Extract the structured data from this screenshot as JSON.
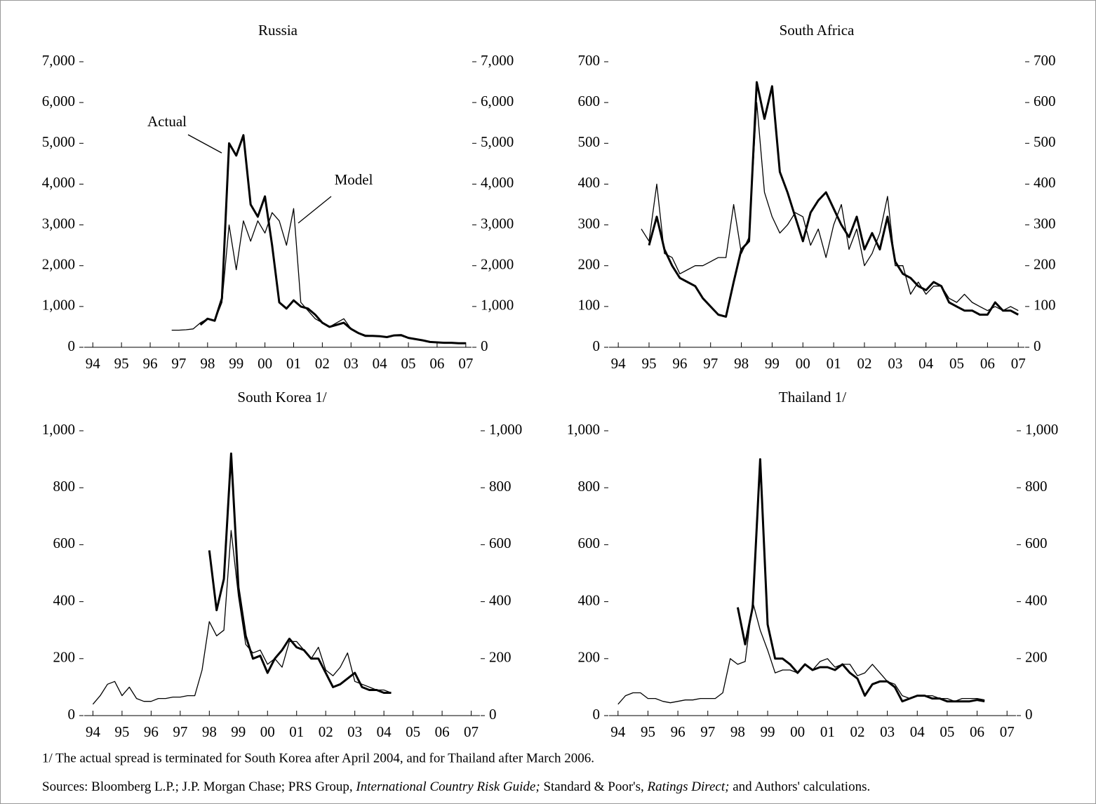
{
  "chart_data": [
    {
      "type": "line",
      "title": "Russia",
      "x": [
        1994,
        1994.25,
        1994.5,
        1994.75,
        1995,
        1995.25,
        1995.5,
        1995.75,
        1996,
        1996.25,
        1996.5,
        1996.75,
        1997,
        1997.25,
        1997.5,
        1997.75,
        1998,
        1998.25,
        1998.5,
        1998.75,
        1999,
        1999.25,
        1999.5,
        1999.75,
        2000,
        2000.25,
        2000.5,
        2000.75,
        2001,
        2001.25,
        2001.5,
        2001.75,
        2002,
        2002.25,
        2002.5,
        2002.75,
        2003,
        2003.25,
        2003.5,
        2003.75,
        2004,
        2004.25,
        2004.5,
        2004.75,
        2005,
        2005.25,
        2005.5,
        2005.75,
        2006,
        2006.25,
        2006.5,
        2006.75,
        2007
      ],
      "xlim": [
        1993.7,
        2007.2
      ],
      "xticks": [
        {
          "value": 1994,
          "label": "94"
        },
        {
          "value": 1995,
          "label": "95"
        },
        {
          "value": 1996,
          "label": "96"
        },
        {
          "value": 1997,
          "label": "97"
        },
        {
          "value": 1998,
          "label": "98"
        },
        {
          "value": 1999,
          "label": "99"
        },
        {
          "value": 2000,
          "label": "00"
        },
        {
          "value": 2001,
          "label": "01"
        },
        {
          "value": 2002,
          "label": "02"
        },
        {
          "value": 2003,
          "label": "03"
        },
        {
          "value": 2004,
          "label": "04"
        },
        {
          "value": 2005,
          "label": "05"
        },
        {
          "value": 2006,
          "label": "06"
        },
        {
          "value": 2007,
          "label": "07"
        }
      ],
      "ylim": [
        0,
        7000
      ],
      "yticks": [
        0,
        {
          "value": 1000,
          "label": "1,000"
        },
        {
          "value": 2000,
          "label": "2,000"
        },
        {
          "value": 3000,
          "label": "3,000"
        },
        {
          "value": 4000,
          "label": "4,000"
        },
        {
          "value": 5000,
          "label": "5,000"
        },
        {
          "value": 6000,
          "label": "6,000"
        },
        {
          "value": 7000,
          "label": "7,000"
        }
      ],
      "y2lim": [
        0,
        7000
      ],
      "y2ticks": [
        0,
        {
          "value": 1000,
          "label": "1,000"
        },
        {
          "value": 2000,
          "label": "2,000"
        },
        {
          "value": 3000,
          "label": "3,000"
        },
        {
          "value": 4000,
          "label": "4,000"
        },
        {
          "value": 5000,
          "label": "5,000"
        },
        {
          "value": 6000,
          "label": "6,000"
        },
        {
          "value": 7000,
          "label": "7,000"
        }
      ],
      "series": [
        {
          "name": "Actual",
          "color": "#000000",
          "line_width": 3,
          "values": [
            null,
            null,
            null,
            null,
            null,
            null,
            null,
            null,
            null,
            null,
            null,
            null,
            null,
            null,
            null,
            550,
            700,
            650,
            1200,
            5000,
            4700,
            5200,
            3500,
            3200,
            3700,
            2500,
            1100,
            950,
            1150,
            1000,
            950,
            800,
            600,
            500,
            550,
            600,
            450,
            350,
            280,
            280,
            270,
            250,
            290,
            300,
            230,
            200,
            170,
            130,
            120,
            110,
            110,
            100,
            100
          ]
        },
        {
          "name": "Model",
          "color": "#000000",
          "line_width": 1.3,
          "values": [
            null,
            null,
            null,
            null,
            null,
            null,
            null,
            null,
            null,
            null,
            null,
            420,
            420,
            430,
            450,
            600,
            700,
            650,
            1100,
            3000,
            1900,
            3100,
            2600,
            3100,
            2800,
            3300,
            3100,
            2500,
            3400,
            1100,
            900,
            700,
            600,
            500,
            600,
            700,
            450,
            350,
            300,
            280,
            270,
            260,
            280,
            280,
            220,
            200,
            170,
            140,
            120,
            120,
            110,
            100,
            100
          ]
        }
      ]
    },
    {
      "type": "line",
      "title": "South Africa",
      "x": [
        1994,
        1994.25,
        1994.5,
        1994.75,
        1995,
        1995.25,
        1995.5,
        1995.75,
        1996,
        1996.25,
        1996.5,
        1996.75,
        1997,
        1997.25,
        1997.5,
        1997.75,
        1998,
        1998.25,
        1998.5,
        1998.75,
        1999,
        1999.25,
        1999.5,
        1999.75,
        2000,
        2000.25,
        2000.5,
        2000.75,
        2001,
        2001.25,
        2001.5,
        2001.75,
        2002,
        2002.25,
        2002.5,
        2002.75,
        2003,
        2003.25,
        2003.5,
        2003.75,
        2004,
        2004.25,
        2004.5,
        2004.75,
        2005,
        2005.25,
        2005.5,
        2005.75,
        2006,
        2006.25,
        2006.5,
        2006.75,
        2007
      ],
      "xlim": [
        1993.7,
        2007.2
      ],
      "xticks": [
        {
          "value": 1994,
          "label": "94"
        },
        {
          "value": 1995,
          "label": "95"
        },
        {
          "value": 1996,
          "label": "96"
        },
        {
          "value": 1997,
          "label": "97"
        },
        {
          "value": 1998,
          "label": "98"
        },
        {
          "value": 1999,
          "label": "99"
        },
        {
          "value": 2000,
          "label": "00"
        },
        {
          "value": 2001,
          "label": "01"
        },
        {
          "value": 2002,
          "label": "02"
        },
        {
          "value": 2003,
          "label": "03"
        },
        {
          "value": 2004,
          "label": "04"
        },
        {
          "value": 2005,
          "label": "05"
        },
        {
          "value": 2006,
          "label": "06"
        },
        {
          "value": 2007,
          "label": "07"
        }
      ],
      "ylim": [
        0,
        700
      ],
      "yticks": [
        0,
        100,
        200,
        300,
        400,
        500,
        600,
        700
      ],
      "y2lim": [
        0,
        700
      ],
      "y2ticks": [
        0,
        100,
        200,
        300,
        400,
        500,
        600,
        700
      ],
      "series": [
        {
          "color": "#000000",
          "line_width": 3,
          "values": [
            null,
            null,
            null,
            null,
            250,
            320,
            240,
            200,
            170,
            160,
            150,
            120,
            100,
            80,
            75,
            160,
            240,
            260,
            650,
            560,
            640,
            430,
            380,
            320,
            260,
            330,
            360,
            380,
            340,
            300,
            270,
            320,
            240,
            280,
            240,
            320,
            210,
            180,
            170,
            150,
            140,
            160,
            150,
            110,
            100,
            90,
            90,
            80,
            80,
            110,
            90,
            90,
            80
          ]
        },
        {
          "color": "#000000",
          "line_width": 1.3,
          "values": [
            null,
            null,
            null,
            290,
            260,
            400,
            230,
            220,
            180,
            190,
            200,
            200,
            210,
            220,
            220,
            350,
            230,
            270,
            600,
            380,
            320,
            280,
            300,
            330,
            320,
            250,
            290,
            220,
            300,
            350,
            240,
            290,
            200,
            230,
            280,
            370,
            200,
            200,
            130,
            160,
            130,
            150,
            150,
            120,
            110,
            130,
            110,
            100,
            90,
            100,
            90,
            100,
            90
          ]
        }
      ]
    },
    {
      "type": "line",
      "title": "South Korea  1/",
      "x": [
        1994,
        1994.25,
        1994.5,
        1994.75,
        1995,
        1995.25,
        1995.5,
        1995.75,
        1996,
        1996.25,
        1996.5,
        1996.75,
        1997,
        1997.25,
        1997.5,
        1997.75,
        1998,
        1998.25,
        1998.5,
        1998.75,
        1999,
        1999.25,
        1999.5,
        1999.75,
        2000,
        2000.25,
        2000.5,
        2000.75,
        2001,
        2001.25,
        2001.5,
        2001.75,
        2002,
        2002.25,
        2002.5,
        2002.75,
        2003,
        2003.25,
        2003.5,
        2003.75,
        2004,
        2004.25,
        2004.5,
        2004.75,
        2005,
        2005.25,
        2005.5,
        2005.75,
        2006,
        2006.25,
        2006.5,
        2006.75,
        2007
      ],
      "xlim": [
        1993.7,
        2007.3
      ],
      "xticks": [
        {
          "value": 1994,
          "label": "94"
        },
        {
          "value": 1995,
          "label": "95"
        },
        {
          "value": 1996,
          "label": "96"
        },
        {
          "value": 1997,
          "label": "97"
        },
        {
          "value": 1998,
          "label": "98"
        },
        {
          "value": 1999,
          "label": "99"
        },
        {
          "value": 2000,
          "label": "00"
        },
        {
          "value": 2001,
          "label": "01"
        },
        {
          "value": 2002,
          "label": "02"
        },
        {
          "value": 2003,
          "label": "03"
        },
        {
          "value": 2004,
          "label": "04"
        },
        {
          "value": 2005,
          "label": "05"
        },
        {
          "value": 2006,
          "label": "06"
        },
        {
          "value": 2007,
          "label": "07"
        }
      ],
      "ylim": [
        0,
        1000
      ],
      "yticks": [
        0,
        200,
        400,
        600,
        800,
        {
          "value": 1000,
          "label": "1,000"
        }
      ],
      "y2lim": [
        0,
        1000
      ],
      "y2ticks": [
        0,
        200,
        400,
        600,
        800,
        {
          "value": 1000,
          "label": "1,000"
        }
      ],
      "series": [
        {
          "color": "#000000",
          "line_width": 3,
          "values": [
            null,
            null,
            null,
            null,
            null,
            null,
            null,
            null,
            null,
            null,
            null,
            null,
            null,
            null,
            null,
            null,
            580,
            370,
            480,
            920,
            450,
            280,
            200,
            210,
            150,
            200,
            230,
            270,
            240,
            230,
            200,
            200,
            150,
            100,
            110,
            130,
            150,
            100,
            90,
            90,
            80,
            80,
            null,
            null,
            null,
            null,
            null,
            null,
            null,
            null,
            null,
            null,
            null
          ]
        },
        {
          "color": "#000000",
          "line_width": 1.3,
          "values": [
            40,
            70,
            110,
            120,
            70,
            100,
            60,
            50,
            50,
            60,
            60,
            65,
            65,
            70,
            70,
            160,
            330,
            280,
            300,
            650,
            420,
            250,
            220,
            230,
            180,
            200,
            170,
            260,
            260,
            230,
            200,
            240,
            160,
            140,
            170,
            220,
            120,
            110,
            100,
            90,
            90,
            80,
            null,
            null,
            null,
            null,
            null,
            null,
            null,
            null,
            null,
            null,
            null
          ]
        }
      ]
    },
    {
      "type": "line",
      "title": "Thailand  1/",
      "x": [
        1994,
        1994.25,
        1994.5,
        1994.75,
        1995,
        1995.25,
        1995.5,
        1995.75,
        1996,
        1996.25,
        1996.5,
        1996.75,
        1997,
        1997.25,
        1997.5,
        1997.75,
        1998,
        1998.25,
        1998.5,
        1998.75,
        1999,
        1999.25,
        1999.5,
        1999.75,
        2000,
        2000.25,
        2000.5,
        2000.75,
        2001,
        2001.25,
        2001.5,
        2001.75,
        2002,
        2002.25,
        2002.5,
        2002.75,
        2003,
        2003.25,
        2003.5,
        2003.75,
        2004,
        2004.25,
        2004.5,
        2004.75,
        2005,
        2005.25,
        2005.5,
        2005.75,
        2006,
        2006.25,
        2006.5,
        2006.75,
        2007
      ],
      "xlim": [
        1993.7,
        2007.3
      ],
      "xticks": [
        {
          "value": 1994,
          "label": "94"
        },
        {
          "value": 1995,
          "label": "95"
        },
        {
          "value": 1996,
          "label": "96"
        },
        {
          "value": 1997,
          "label": "97"
        },
        {
          "value": 1998,
          "label": "98"
        },
        {
          "value": 1999,
          "label": "99"
        },
        {
          "value": 2000,
          "label": "00"
        },
        {
          "value": 2001,
          "label": "01"
        },
        {
          "value": 2002,
          "label": "02"
        },
        {
          "value": 2003,
          "label": "03"
        },
        {
          "value": 2004,
          "label": "04"
        },
        {
          "value": 2005,
          "label": "05"
        },
        {
          "value": 2006,
          "label": "06"
        },
        {
          "value": 2007,
          "label": "07"
        }
      ],
      "ylim": [
        0,
        1000
      ],
      "yticks": [
        0,
        200,
        400,
        600,
        800,
        {
          "value": 1000,
          "label": "1,000"
        }
      ],
      "y2lim": [
        0,
        1000
      ],
      "y2ticks": [
        0,
        200,
        400,
        600,
        800,
        {
          "value": 1000,
          "label": "1,000"
        }
      ],
      "series": [
        {
          "color": "#000000",
          "line_width": 3,
          "values": [
            null,
            null,
            null,
            null,
            null,
            null,
            null,
            null,
            null,
            null,
            null,
            null,
            null,
            null,
            null,
            null,
            380,
            250,
            380,
            900,
            320,
            200,
            200,
            180,
            150,
            180,
            160,
            170,
            170,
            160,
            180,
            150,
            130,
            70,
            110,
            120,
            120,
            100,
            50,
            60,
            70,
            70,
            60,
            60,
            50,
            50,
            50,
            50,
            55,
            50,
            null,
            null,
            null
          ]
        },
        {
          "color": "#000000",
          "line_width": 1.3,
          "values": [
            40,
            70,
            80,
            80,
            60,
            60,
            50,
            45,
            50,
            55,
            55,
            60,
            60,
            60,
            80,
            200,
            180,
            190,
            400,
            300,
            230,
            150,
            160,
            160,
            150,
            180,
            160,
            190,
            200,
            170,
            180,
            180,
            140,
            150,
            180,
            150,
            120,
            110,
            70,
            60,
            70,
            70,
            70,
            60,
            60,
            50,
            60,
            60,
            60,
            55,
            null,
            null,
            null
          ]
        }
      ]
    }
  ],
  "footnotes": {
    "note": "1/ The actual spread is terminated  for South Korea after April 2004, and for Thailand after March  2006.",
    "sources": [
      "Sources: Bloomberg L.P.; J.P. Morgan Chase; PRS Group, ",
      "International Country Risk Guide;",
      " Standard & Poor's, ",
      "Ratings Direct;",
      " and Authors' calculations."
    ]
  }
}
